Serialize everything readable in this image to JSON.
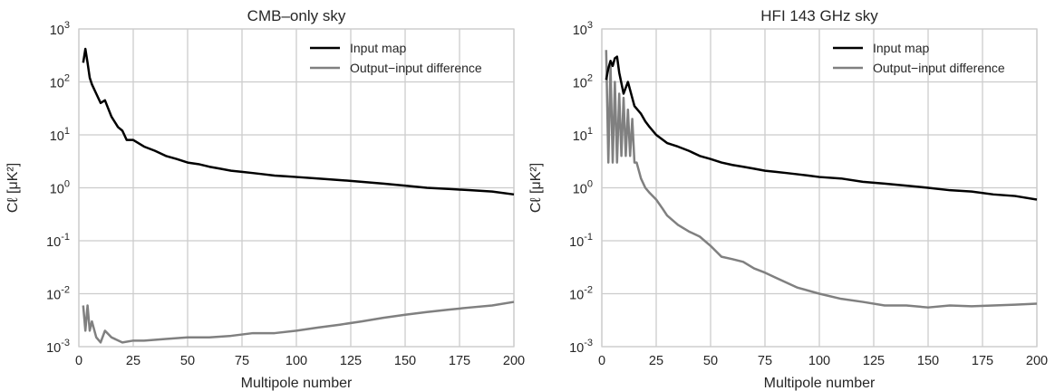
{
  "chart_data": [
    {
      "type": "line",
      "title": "CMB–only sky",
      "xlabel": "Multipole number",
      "ylabel": "Cℓ [μK²]",
      "xlim": [
        0,
        200
      ],
      "ylim": [
        0.001,
        1000
      ],
      "yscale": "log",
      "grid": true,
      "legend_position": "top-right",
      "x_ticks": [
        0,
        25,
        50,
        75,
        100,
        125,
        150,
        175,
        200
      ],
      "y_tick_exponents": [
        -3,
        -2,
        -1,
        0,
        1,
        2,
        3
      ],
      "series": [
        {
          "name": "Input map",
          "color": "#000000",
          "x": [
            2,
            3,
            4,
            5,
            6,
            8,
            10,
            12,
            15,
            18,
            20,
            22,
            25,
            30,
            35,
            40,
            45,
            50,
            55,
            60,
            65,
            70,
            75,
            80,
            85,
            90,
            95,
            100,
            110,
            120,
            130,
            140,
            150,
            160,
            170,
            180,
            190,
            200
          ],
          "values": [
            230,
            420,
            230,
            120,
            90,
            60,
            40,
            45,
            22,
            14,
            12,
            8,
            8,
            6,
            5,
            4,
            3.5,
            3,
            2.8,
            2.5,
            2.3,
            2.1,
            2.0,
            1.9,
            1.8,
            1.7,
            1.65,
            1.6,
            1.5,
            1.4,
            1.3,
            1.2,
            1.1,
            1.0,
            0.95,
            0.9,
            0.85,
            0.75
          ]
        },
        {
          "name": "Output−input difference",
          "color": "#808080",
          "x": [
            2,
            3,
            4,
            5,
            6,
            8,
            10,
            12,
            15,
            20,
            25,
            30,
            40,
            50,
            60,
            70,
            80,
            90,
            100,
            110,
            120,
            130,
            140,
            150,
            160,
            170,
            180,
            190,
            200
          ],
          "values": [
            0.006,
            0.002,
            0.006,
            0.002,
            0.003,
            0.0015,
            0.0012,
            0.002,
            0.0015,
            0.0012,
            0.0013,
            0.0013,
            0.0014,
            0.0015,
            0.0015,
            0.0016,
            0.0018,
            0.0018,
            0.002,
            0.0023,
            0.0026,
            0.003,
            0.0035,
            0.004,
            0.0045,
            0.005,
            0.0055,
            0.006,
            0.007
          ]
        }
      ]
    },
    {
      "type": "line",
      "title": "HFI 143 GHz sky",
      "xlabel": "Multipole number",
      "ylabel": "Cℓ [μK²]",
      "xlim": [
        0,
        200
      ],
      "ylim": [
        0.001,
        1000
      ],
      "yscale": "log",
      "grid": true,
      "legend_position": "top-right",
      "x_ticks": [
        0,
        25,
        50,
        75,
        100,
        125,
        150,
        175,
        200
      ],
      "y_tick_exponents": [
        -3,
        -2,
        -1,
        0,
        1,
        2,
        3
      ],
      "series": [
        {
          "name": "Input map",
          "color": "#000000",
          "x": [
            2,
            3,
            4,
            5,
            6,
            7,
            8,
            10,
            12,
            15,
            18,
            20,
            22,
            25,
            30,
            35,
            40,
            45,
            50,
            55,
            60,
            65,
            70,
            75,
            80,
            85,
            90,
            95,
            100,
            110,
            120,
            130,
            140,
            150,
            160,
            170,
            180,
            190,
            200
          ],
          "values": [
            110,
            180,
            250,
            200,
            280,
            300,
            150,
            60,
            100,
            35,
            25,
            18,
            14,
            10,
            7,
            6,
            5,
            4,
            3.5,
            3.0,
            2.7,
            2.5,
            2.3,
            2.1,
            2.0,
            1.9,
            1.8,
            1.7,
            1.6,
            1.5,
            1.3,
            1.2,
            1.1,
            1.0,
            0.9,
            0.85,
            0.75,
            0.7,
            0.6
          ]
        },
        {
          "name": "Output−input difference",
          "color": "#808080",
          "x": [
            2,
            3,
            4,
            5,
            6,
            7,
            8,
            9,
            10,
            11,
            12,
            13,
            14,
            15,
            16,
            18,
            20,
            22,
            25,
            28,
            30,
            35,
            40,
            45,
            50,
            55,
            60,
            65,
            70,
            75,
            80,
            90,
            100,
            110,
            120,
            130,
            140,
            150,
            160,
            170,
            180,
            190,
            200
          ],
          "values": [
            400,
            3,
            200,
            3,
            100,
            3,
            60,
            4,
            50,
            4,
            30,
            4,
            20,
            3,
            3,
            1.5,
            1.0,
            0.8,
            0.6,
            0.4,
            0.3,
            0.2,
            0.15,
            0.12,
            0.08,
            0.05,
            0.045,
            0.04,
            0.03,
            0.025,
            0.02,
            0.013,
            0.01,
            0.008,
            0.007,
            0.006,
            0.006,
            0.0055,
            0.006,
            0.0058,
            0.006,
            0.0062,
            0.0065
          ]
        }
      ]
    }
  ]
}
